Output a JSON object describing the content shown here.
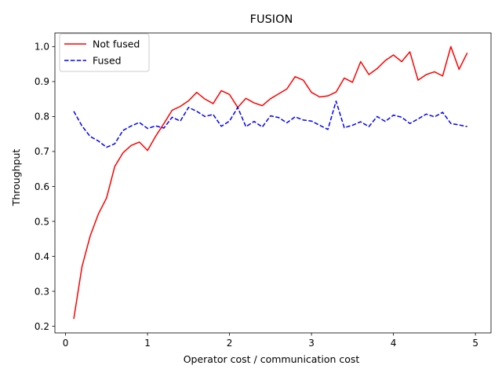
{
  "chart_data": {
    "type": "line",
    "title": "FUSION",
    "xlabel": "Operator cost / communication cost",
    "ylabel": "Throughput",
    "xlim": [
      -0.13,
      5.19
    ],
    "ylim": [
      0.181,
      1.039
    ],
    "xticks": [
      0,
      1,
      2,
      3,
      4,
      5
    ],
    "xtick_labels": [
      "0",
      "1",
      "2",
      "3",
      "4",
      "5"
    ],
    "yticks": [
      0.2,
      0.3,
      0.4,
      0.5,
      0.6,
      0.7,
      0.8,
      0.9,
      1.0
    ],
    "ytick_labels": [
      "0.2",
      "0.3",
      "0.4",
      "0.5",
      "0.6",
      "0.7",
      "0.8",
      "0.9",
      "1.0"
    ],
    "grid": false,
    "legend_position": "upper-left",
    "x": [
      0.1,
      0.2,
      0.3,
      0.4,
      0.5,
      0.6,
      0.7,
      0.8,
      0.9,
      1.0,
      1.1,
      1.2,
      1.3,
      1.4,
      1.5,
      1.6,
      1.7,
      1.8,
      1.9,
      2.0,
      2.1,
      2.2,
      2.3,
      2.4,
      2.5,
      2.6,
      2.7,
      2.8,
      2.9,
      3.0,
      3.1,
      3.2,
      3.3,
      3.4,
      3.5,
      3.6,
      3.7,
      3.8,
      3.9,
      4.0,
      4.1,
      4.2,
      4.3,
      4.4,
      4.5,
      4.6,
      4.7,
      4.8,
      4.9
    ],
    "series": [
      {
        "name": "Not fused",
        "color": "#ff0000",
        "style": "solid",
        "values": [
          0.221,
          0.37,
          0.458,
          0.521,
          0.567,
          0.657,
          0.696,
          0.717,
          0.727,
          0.703,
          0.744,
          0.78,
          0.818,
          0.829,
          0.845,
          0.869,
          0.85,
          0.837,
          0.874,
          0.863,
          0.826,
          0.852,
          0.839,
          0.831,
          0.851,
          0.865,
          0.879,
          0.914,
          0.904,
          0.869,
          0.856,
          0.859,
          0.87,
          0.91,
          0.898,
          0.957,
          0.92,
          0.937,
          0.96,
          0.976,
          0.957,
          0.985,
          0.904,
          0.92,
          0.928,
          0.916,
          1.0,
          0.935,
          0.982
        ]
      },
      {
        "name": "Fused",
        "color": "#0000ff",
        "style": "dashed",
        "values": [
          0.815,
          0.773,
          0.743,
          0.73,
          0.712,
          0.722,
          0.76,
          0.773,
          0.783,
          0.766,
          0.773,
          0.767,
          0.798,
          0.787,
          0.826,
          0.815,
          0.8,
          0.806,
          0.772,
          0.787,
          0.826,
          0.771,
          0.786,
          0.77,
          0.802,
          0.797,
          0.782,
          0.799,
          0.79,
          0.787,
          0.775,
          0.763,
          0.844,
          0.768,
          0.775,
          0.785,
          0.771,
          0.8,
          0.786,
          0.804,
          0.798,
          0.78,
          0.793,
          0.807,
          0.799,
          0.812,
          0.78,
          0.776,
          0.771
        ]
      }
    ]
  }
}
